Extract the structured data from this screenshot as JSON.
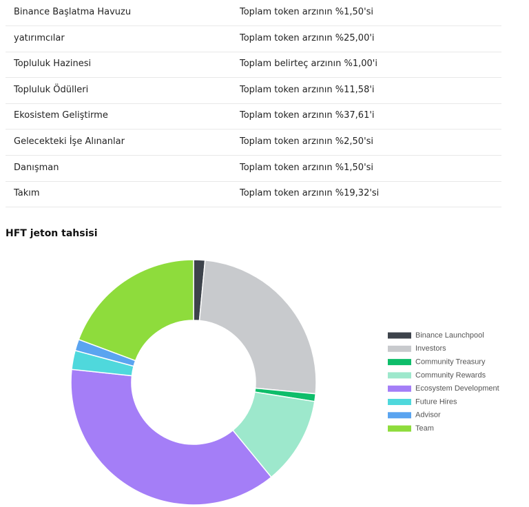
{
  "table": {
    "rows": [
      [
        "Binance Başlatma Havuzu",
        "Toplam token arzının %1,50'si"
      ],
      [
        "yatırımcılar",
        "Toplam token arzının %25,00'i"
      ],
      [
        "Topluluk Hazinesi",
        "Toplam belirteç arzının %1,00'i"
      ],
      [
        "Topluluk Ödülleri",
        "Toplam token arzının %11,58'i"
      ],
      [
        "Ekosistem Geliştirme",
        "Toplam token arzının %37,61'i"
      ],
      [
        "Gelecekteki İşe Alınanlar",
        "Toplam token arzının %2,50'si"
      ],
      [
        "Danışman",
        "Toplam token arzının %1,50'si"
      ],
      [
        "Takım",
        "Toplam token arzının %19,32'si"
      ]
    ]
  },
  "chart_data": {
    "type": "donut",
    "title": "HFT jeton tahsisi",
    "categories": [
      "Binance Launchpool",
      "Investors",
      "Community Treasury",
      "Community Rewards",
      "Ecosystem Development",
      "Future Hires",
      "Advisor",
      "Team"
    ],
    "values": [
      1.5,
      25,
      1,
      11.58,
      37.61,
      2.5,
      1.5,
      19.32
    ],
    "colors": [
      "#3d434b",
      "#c8cacd",
      "#0ebd6a",
      "#9de8cc",
      "#a47ef7",
      "#4fd8dc",
      "#5aa4f0",
      "#8edc3c"
    ],
    "legend": "right"
  }
}
